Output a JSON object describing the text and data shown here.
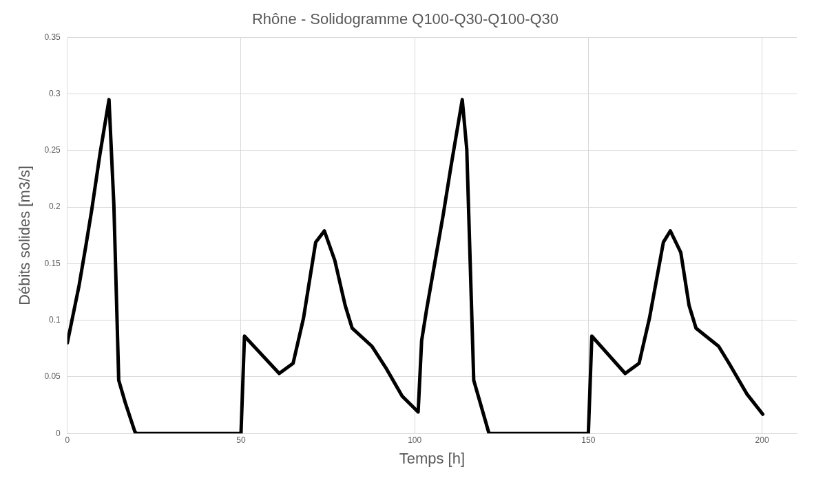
{
  "chart_data": {
    "type": "line",
    "title": "Rhône - Solidogramme Q100-Q30-Q100-Q30",
    "xlabel": "Temps [h]",
    "ylabel": "Débits solides [m3/s]",
    "x": [
      0,
      3.4,
      5.4,
      7,
      9.4,
      12,
      13.4,
      14.8,
      16.7,
      19.5,
      20,
      50,
      51,
      61,
      65,
      68,
      71.5,
      74,
      77,
      80,
      82,
      87.7,
      91.7,
      96.4,
      101,
      102,
      103.4,
      105.8,
      108.2,
      110.5,
      113.7,
      115,
      117,
      118.5,
      121.4,
      150,
      151,
      160.6,
      164.6,
      167.6,
      171.6,
      173.6,
      176.6,
      179,
      181,
      187.5,
      190.5,
      195.6,
      200.2
    ],
    "series": [
      {
        "color": "#000000",
        "values": [
          0.08,
          0.131,
          0.167,
          0.197,
          0.247,
          0.295,
          0.202,
          0.047,
          0.027,
          0.001,
          0,
          0,
          0.086,
          0.053,
          0.062,
          0.102,
          0.169,
          0.179,
          0.153,
          0.113,
          0.093,
          0.077,
          0.058,
          0.033,
          0.019,
          0.082,
          0.109,
          0.151,
          0.193,
          0.237,
          0.295,
          0.251,
          0.047,
          0.031,
          0,
          0,
          0.086,
          0.053,
          0.062,
          0.102,
          0.169,
          0.179,
          0.16,
          0.113,
          0.093,
          0.077,
          0.062,
          0.035,
          0.017
        ]
      }
    ],
    "xlim": [
      0,
      210
    ],
    "xticks": [
      0,
      50,
      100,
      150,
      200
    ],
    "ylim": [
      0,
      0.35
    ],
    "yticks": [
      0,
      0.05,
      0.1,
      0.15,
      0.2,
      0.25,
      0.3,
      0.35
    ],
    "grid": true,
    "marker": "none",
    "line_style": "solid",
    "legend": false
  }
}
